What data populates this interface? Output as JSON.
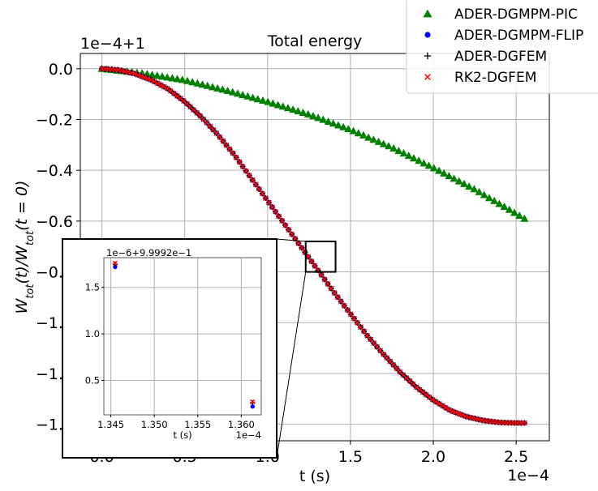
{
  "chart_data": [
    {
      "type": "scatter",
      "title": "Total energy",
      "xlabel": "t (s)",
      "ylabel": "W_tot(t)/W_tot(t=0)",
      "x_offset_label": "1e−4",
      "y_offset_label": "1e−4+1",
      "xlim": [
        -0.13,
        2.7
      ],
      "ylim": [
        -1.465,
        0.06
      ],
      "x_ticks": [
        0.0,
        0.5,
        1.0,
        1.5,
        2.0,
        2.5
      ],
      "x_tick_labels": [
        "0.0",
        "0.5",
        "1.0",
        "1.5",
        "2.0",
        "2.5"
      ],
      "y_ticks": [
        0.0,
        -0.2,
        -0.4,
        -0.6,
        -0.8,
        -1.0,
        -1.2,
        -1.4
      ],
      "y_tick_labels": [
        "0.0",
        "−0.2",
        "−0.4",
        "−0.6",
        "−0.8",
        "−1.0",
        "−1.2",
        "−1.4"
      ],
      "grid": true,
      "legend_position": "top-right",
      "series": [
        {
          "name": "ADER-DGMPM-PIC",
          "marker": "triangle",
          "color": "#008000",
          "x": [
            0.0,
            0.25,
            0.5,
            0.75,
            1.0,
            1.25,
            1.5,
            1.75,
            2.0,
            2.25,
            2.55
          ],
          "y": [
            0.0,
            -0.018,
            -0.045,
            -0.085,
            -0.13,
            -0.18,
            -0.24,
            -0.31,
            -0.39,
            -0.475,
            -0.59
          ]
        },
        {
          "name": "ADER-DGMPM-FLIP",
          "marker": "circle",
          "color": "#0000ff",
          "x": [
            0.0,
            0.1,
            0.2,
            0.3,
            0.4,
            0.5,
            0.6,
            0.7,
            0.8,
            0.9,
            1.0,
            1.1,
            1.2,
            1.3,
            1.4,
            1.5,
            1.6,
            1.7,
            1.8,
            1.9,
            2.0,
            2.1,
            2.2,
            2.3,
            2.4,
            2.5,
            2.55
          ],
          "y": [
            0.0,
            -0.005,
            -0.02,
            -0.045,
            -0.08,
            -0.13,
            -0.19,
            -0.26,
            -0.34,
            -0.43,
            -0.52,
            -0.61,
            -0.7,
            -0.79,
            -0.88,
            -0.965,
            -1.05,
            -1.125,
            -1.195,
            -1.255,
            -1.305,
            -1.345,
            -1.37,
            -1.385,
            -1.393,
            -1.395,
            -1.395
          ]
        },
        {
          "name": "ADER-DGFEM",
          "marker": "plus",
          "color": "#000000",
          "x": [
            0.0,
            0.1,
            0.2,
            0.3,
            0.4,
            0.5,
            0.6,
            0.7,
            0.8,
            0.9,
            1.0,
            1.1,
            1.2,
            1.3,
            1.4,
            1.5,
            1.6,
            1.7,
            1.8,
            1.9,
            2.0,
            2.1,
            2.2,
            2.3,
            2.4,
            2.5,
            2.55
          ],
          "y": [
            0.0,
            -0.005,
            -0.02,
            -0.045,
            -0.08,
            -0.13,
            -0.19,
            -0.26,
            -0.34,
            -0.43,
            -0.52,
            -0.61,
            -0.7,
            -0.79,
            -0.88,
            -0.965,
            -1.05,
            -1.125,
            -1.195,
            -1.255,
            -1.305,
            -1.345,
            -1.37,
            -1.385,
            -1.393,
            -1.395,
            -1.395
          ]
        },
        {
          "name": "RK2-DGFEM",
          "marker": "x",
          "color": "#ff0000",
          "x": [
            0.0,
            0.1,
            0.2,
            0.3,
            0.4,
            0.5,
            0.6,
            0.7,
            0.8,
            0.9,
            1.0,
            1.1,
            1.2,
            1.3,
            1.4,
            1.5,
            1.6,
            1.7,
            1.8,
            1.9,
            2.0,
            2.1,
            2.2,
            2.3,
            2.4,
            2.5,
            2.55
          ],
          "y": [
            0.0,
            -0.005,
            -0.02,
            -0.045,
            -0.08,
            -0.13,
            -0.19,
            -0.26,
            -0.34,
            -0.43,
            -0.52,
            -0.61,
            -0.7,
            -0.79,
            -0.88,
            -0.965,
            -1.05,
            -1.125,
            -1.195,
            -1.255,
            -1.305,
            -1.345,
            -1.37,
            -1.385,
            -1.393,
            -1.395,
            -1.395
          ]
        }
      ],
      "zoom_region": {
        "x": [
          1.23,
          1.41
        ],
        "y": [
          -0.68,
          -0.8
        ]
      }
    },
    {
      "type": "scatter",
      "title": "",
      "xlabel": "t (s)",
      "ylabel": "",
      "x_offset_label": "1e−4",
      "y_offset_label": "1e−6+9.9992e−1",
      "xlim": [
        1.3442,
        1.3623
      ],
      "ylim": [
        0.13,
        1.82
      ],
      "x_ticks": [
        1.345,
        1.35,
        1.355,
        1.36
      ],
      "x_tick_labels": [
        "1.345",
        "1.350",
        "1.355",
        "1.360"
      ],
      "y_ticks": [
        0.5,
        1.0,
        1.5
      ],
      "y_tick_labels": [
        "0.5",
        "1.0",
        "1.5"
      ],
      "grid": true,
      "series": [
        {
          "name": "ADER-DGMPM-FLIP",
          "marker": "circle",
          "color": "#0000ff",
          "x": [
            1.3455,
            1.3613
          ],
          "y": [
            1.72,
            0.22
          ]
        },
        {
          "name": "ADER-DGFEM",
          "marker": "plus",
          "color": "#000000",
          "x": [
            1.3455,
            1.3613
          ],
          "y": [
            1.75,
            0.26
          ]
        },
        {
          "name": "RK2-DGFEM",
          "marker": "x",
          "color": "#ff0000",
          "x": [
            1.3455,
            1.3613
          ],
          "y": [
            1.76,
            0.27
          ]
        }
      ]
    }
  ]
}
